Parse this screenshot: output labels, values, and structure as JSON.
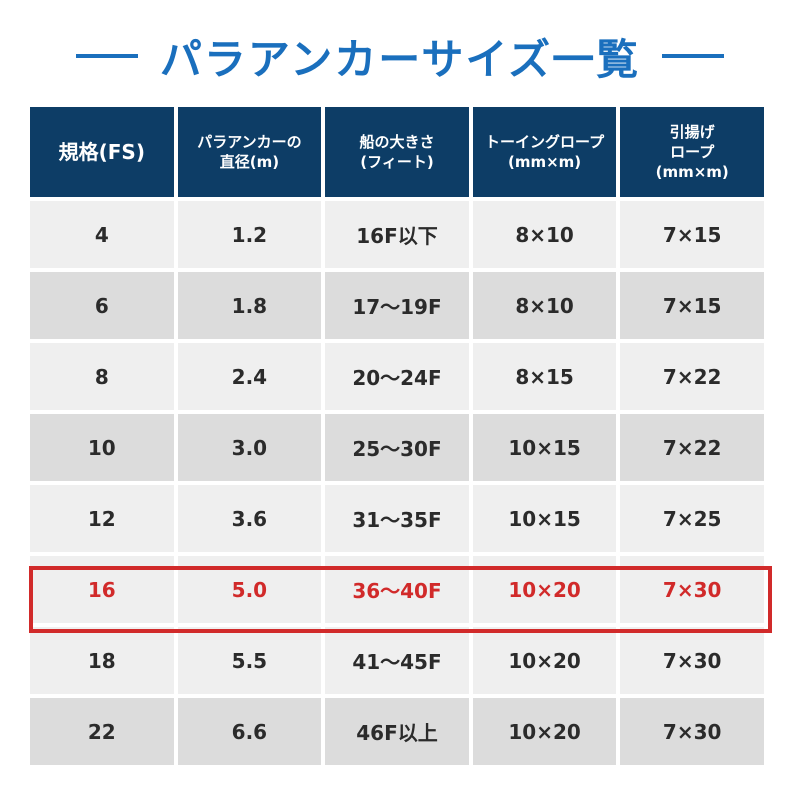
{
  "title": "パラアンカーサイズ一覧",
  "colors": {
    "title": "#1a6fbd",
    "header_bg": "#0d3d66",
    "highlight": "#d12a2a"
  },
  "table": {
    "headers": [
      "規格(FS)",
      "パラアンカーの\n直径(m)",
      "船の大きさ\n(フィート)",
      "トーイングロープ\n(mm×m)",
      "引揚げ\nロープ\n(mm×m)"
    ],
    "highlighted_row": "16",
    "rows": [
      [
        "4",
        "1.2",
        "16F以下",
        "8×10",
        "7×15"
      ],
      [
        "6",
        "1.8",
        "17〜19F",
        "8×10",
        "7×15"
      ],
      [
        "8",
        "2.4",
        "20〜24F",
        "8×15",
        "7×22"
      ],
      [
        "10",
        "3.0",
        "25〜30F",
        "10×15",
        "7×22"
      ],
      [
        "12",
        "3.6",
        "31〜35F",
        "10×15",
        "7×25"
      ],
      [
        "16",
        "5.0",
        "36〜40F",
        "10×20",
        "7×30"
      ],
      [
        "18",
        "5.5",
        "41〜45F",
        "10×20",
        "7×30"
      ],
      [
        "22",
        "6.6",
        "46F以上",
        "10×20",
        "7×30"
      ]
    ]
  }
}
